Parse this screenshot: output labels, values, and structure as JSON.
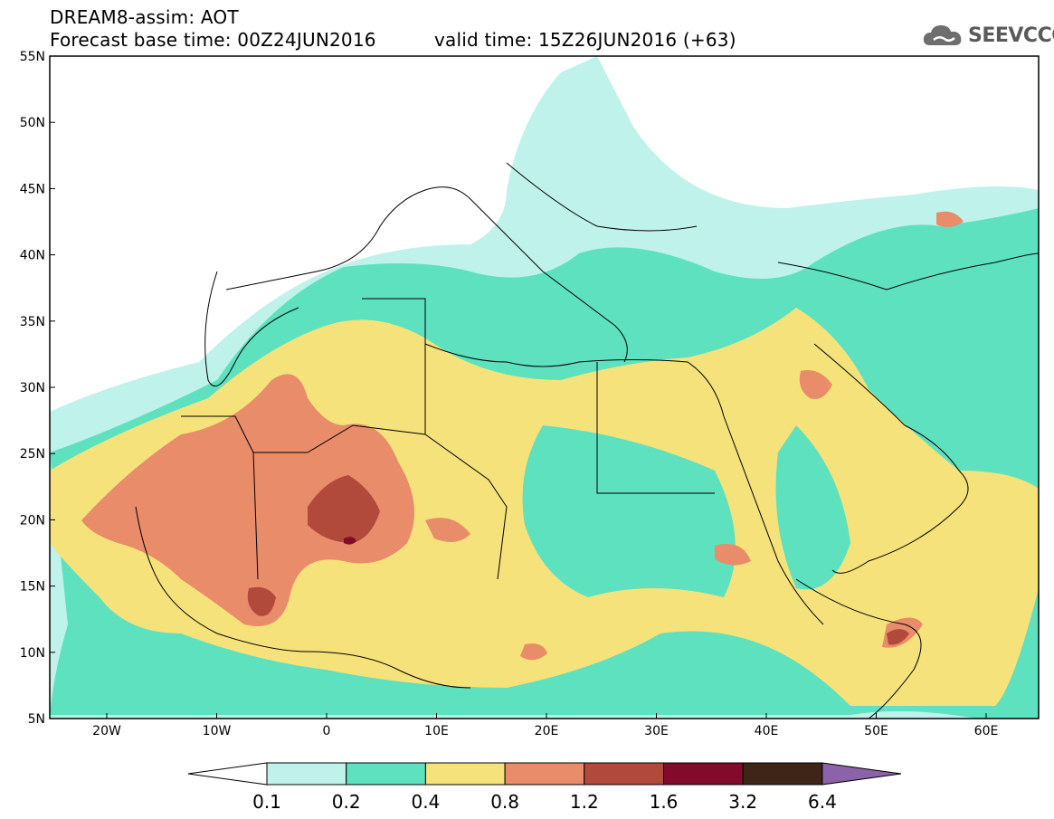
{
  "header": {
    "line1": "DREAM8-assim: AOT",
    "line2": "Forecast base time: 00Z24JUN2016",
    "line3": "valid time: 15Z26JUN2016 (+63)"
  },
  "logo": {
    "text": "SEEVCCC",
    "icon": "cloud-icon"
  },
  "map": {
    "lat_labels": [
      "55N",
      "50N",
      "45N",
      "40N",
      "35N",
      "30N",
      "25N",
      "20N",
      "15N",
      "10N",
      "5N"
    ],
    "lon_labels": [
      "20W",
      "10W",
      "0",
      "10E",
      "20E",
      "30E",
      "40E",
      "50E",
      "60E"
    ]
  },
  "colorbar": {
    "labels": [
      "0.1",
      "0.2",
      "0.4",
      "0.8",
      "1.2",
      "1.6",
      "3.2",
      "6.4"
    ],
    "colors": [
      "#bff2ea",
      "#5ee1bf",
      "#f6e27a",
      "#e88c6a",
      "#b24a3c",
      "#820a2a",
      "#3e2518",
      "#8c62a8"
    ]
  }
}
